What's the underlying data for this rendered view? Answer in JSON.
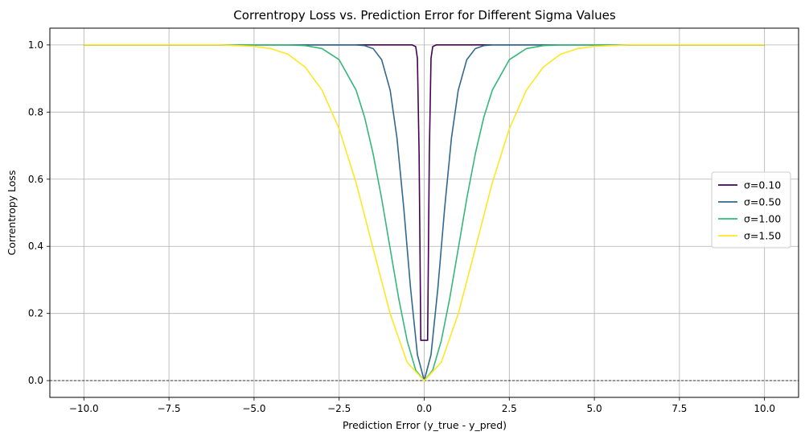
{
  "chart_data": {
    "type": "line",
    "title": "Correntropy Loss vs. Prediction Error for Different Sigma Values",
    "xlabel": "Prediction Error (y_true - y_pred)",
    "ylabel": "Correntropy Loss",
    "xlim": [
      -11,
      11
    ],
    "ylim": [
      -0.05,
      1.05
    ],
    "xticks": [
      -10.0,
      -7.5,
      -5.0,
      -2.5,
      0.0,
      2.5,
      5.0,
      7.5,
      10.0
    ],
    "xtick_labels": [
      "−10.0",
      "−7.5",
      "−5.0",
      "−2.5",
      "0.0",
      "2.5",
      "5.0",
      "7.5",
      "10.0"
    ],
    "yticks": [
      0.0,
      0.2,
      0.4,
      0.6,
      0.8,
      1.0
    ],
    "ytick_labels": [
      "0.0",
      "0.2",
      "0.4",
      "0.6",
      "0.8",
      "1.0"
    ],
    "grid": true,
    "reference_line": {
      "y": 0,
      "style": "dashed",
      "color": "#000000"
    },
    "legend": {
      "position": "center-right"
    },
    "series": [
      {
        "name": "σ=0.10",
        "color": "#440154",
        "x": [
          -10.0,
          -5.0,
          -0.5,
          -0.35,
          -0.25,
          -0.2,
          -0.15,
          -0.1,
          -0.05,
          0.0,
          0.05,
          0.1,
          0.15,
          0.2,
          0.25,
          0.35,
          0.5,
          5.0,
          10.0
        ],
        "y": [
          1.0,
          1.0,
          1.0,
          1.0,
          0.995,
          0.96,
          0.675,
          0.12,
          0.12,
          0.12,
          0.12,
          0.12,
          0.675,
          0.96,
          0.995,
          1.0,
          1.0,
          1.0,
          1.0
        ]
      },
      {
        "name": "σ=0.50",
        "color": "#31688e",
        "x": [
          -10.0,
          -3.0,
          -2.0,
          -1.75,
          -1.5,
          -1.25,
          -1.0,
          -0.8,
          -0.6,
          -0.4,
          -0.2,
          0.0,
          0.2,
          0.4,
          0.6,
          0.8,
          1.0,
          1.25,
          1.5,
          1.75,
          2.0,
          3.0,
          10.0
        ],
        "y": [
          1.0,
          1.0,
          1.0,
          0.998,
          0.989,
          0.956,
          0.865,
          0.722,
          0.513,
          0.274,
          0.077,
          0.0,
          0.077,
          0.274,
          0.513,
          0.722,
          0.865,
          0.956,
          0.989,
          0.998,
          1.0,
          1.0,
          1.0
        ],
        "y_at_x0_note": ""
      },
      {
        "name": "σ=1.00",
        "color": "#35b779",
        "x": [
          -10.0,
          -6.0,
          -5.0,
          -4.0,
          -3.5,
          -3.0,
          -2.5,
          -2.0,
          -1.75,
          -1.5,
          -1.25,
          -1.0,
          -0.75,
          -0.5,
          -0.25,
          0.0,
          0.25,
          0.5,
          0.75,
          1.0,
          1.25,
          1.5,
          1.75,
          2.0,
          2.5,
          3.0,
          3.5,
          4.0,
          5.0,
          6.0,
          10.0
        ],
        "y": [
          1.0,
          1.0,
          1.0,
          1.0,
          0.998,
          0.989,
          0.956,
          0.865,
          0.784,
          0.675,
          0.542,
          0.393,
          0.245,
          0.118,
          0.031,
          0.0,
          0.031,
          0.118,
          0.245,
          0.393,
          0.542,
          0.675,
          0.784,
          0.865,
          0.956,
          0.989,
          0.998,
          1.0,
          1.0,
          1.0,
          1.0
        ]
      },
      {
        "name": "σ=1.50",
        "color": "#fde725",
        "x": [
          -10.0,
          -7.0,
          -6.0,
          -5.0,
          -4.5,
          -4.0,
          -3.5,
          -3.0,
          -2.5,
          -2.0,
          -1.5,
          -1.0,
          -0.5,
          0.0,
          0.5,
          1.0,
          1.5,
          2.0,
          2.5,
          3.0,
          3.5,
          4.0,
          4.5,
          5.0,
          6.0,
          7.0,
          10.0
        ],
        "y": [
          1.0,
          1.0,
          1.0,
          0.996,
          0.989,
          0.972,
          0.934,
          0.865,
          0.75,
          0.589,
          0.393,
          0.199,
          0.054,
          0.0,
          0.054,
          0.199,
          0.393,
          0.589,
          0.75,
          0.865,
          0.934,
          0.972,
          0.989,
          0.996,
          1.0,
          1.0,
          1.0
        ]
      }
    ]
  }
}
